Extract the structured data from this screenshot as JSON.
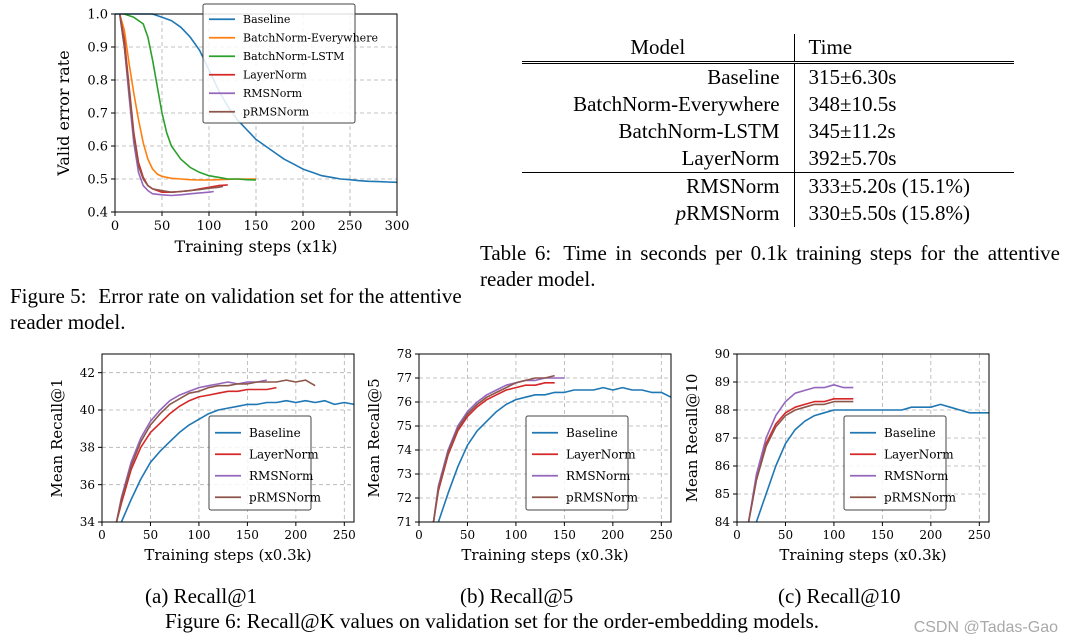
{
  "figure5": {
    "caption_label": "Figure 5:",
    "caption_text": "Error rate on validation set for the attentive reader model."
  },
  "table6": {
    "columns": [
      "Model",
      "Time"
    ],
    "rows": [
      {
        "model": "Baseline",
        "time": "315±6.30s"
      },
      {
        "model": "BatchNorm-Everywhere",
        "time": "348±10.5s"
      },
      {
        "model": "BatchNorm-LSTM",
        "time": "345±11.2s"
      },
      {
        "model": "LayerNorm",
        "time": "392±5.70s"
      },
      {
        "model": "RMSNorm",
        "time": "333±5.20s (15.1%)"
      },
      {
        "model": "pRMSNorm",
        "time": "330±5.50s (15.8%)"
      }
    ],
    "caption_label": "Table 6:",
    "caption_text": "Time in seconds per 0.1k training steps for the attentive reader model."
  },
  "figure6": {
    "subcaptions": [
      "(a) Recall@1",
      "(b) Recall@5",
      "(c) Recall@10"
    ],
    "caption": "Figure 6: Recall@K values on validation set for the order-embedding models."
  },
  "watermark": "CSDN @Tadas-Gao",
  "colors": {
    "Baseline": "#1f77b4",
    "BatchNorm-Everywhere": "#ff7f0e",
    "BatchNorm-LSTM": "#2ca02c",
    "LayerNorm": "#d62728",
    "RMSNorm": "#9467bd",
    "pRMSNorm": "#8c564b"
  },
  "chart_data": [
    {
      "id": "fig5",
      "type": "line",
      "xlabel": "Training steps (x1k)",
      "ylabel": "Valid error rate",
      "xlim": [
        0,
        300
      ],
      "ylim": [
        0.4,
        1.0
      ],
      "xticks": [
        0,
        50,
        100,
        150,
        200,
        250,
        300
      ],
      "yticks": [
        0.4,
        0.5,
        0.6,
        0.7,
        0.8,
        0.9,
        1.0
      ],
      "grid": true,
      "legend_position": "top-right",
      "series": [
        {
          "name": "Baseline",
          "x": [
            0,
            10,
            20,
            30,
            40,
            50,
            60,
            70,
            80,
            90,
            100,
            110,
            120,
            130,
            140,
            150,
            160,
            170,
            180,
            190,
            200,
            210,
            220,
            230,
            240,
            250,
            260,
            270,
            280,
            290,
            300
          ],
          "y": [
            1.0,
            1.0,
            1.0,
            1.0,
            1.0,
            0.99,
            0.98,
            0.96,
            0.93,
            0.89,
            0.83,
            0.77,
            0.72,
            0.68,
            0.65,
            0.62,
            0.6,
            0.58,
            0.56,
            0.545,
            0.53,
            0.52,
            0.51,
            0.505,
            0.5,
            0.498,
            0.495,
            0.493,
            0.492,
            0.491,
            0.49
          ]
        },
        {
          "name": "BatchNorm-Everywhere",
          "x": [
            5,
            10,
            15,
            20,
            25,
            30,
            35,
            40,
            45,
            50,
            60,
            70,
            80,
            90,
            100,
            110,
            120,
            130,
            140,
            150
          ],
          "y": [
            1.0,
            0.95,
            0.85,
            0.76,
            0.68,
            0.61,
            0.56,
            0.53,
            0.515,
            0.508,
            0.502,
            0.5,
            0.498,
            0.497,
            0.497,
            0.498,
            0.499,
            0.5,
            0.5,
            0.5
          ]
        },
        {
          "name": "BatchNorm-LSTM",
          "x": [
            10,
            20,
            30,
            35,
            40,
            45,
            50,
            55,
            60,
            70,
            80,
            90,
            100,
            110,
            120,
            130,
            140,
            150
          ],
          "y": [
            1.0,
            0.99,
            0.97,
            0.93,
            0.86,
            0.78,
            0.7,
            0.64,
            0.6,
            0.56,
            0.535,
            0.52,
            0.51,
            0.505,
            0.5,
            0.5,
            0.498,
            0.497
          ]
        },
        {
          "name": "LayerNorm",
          "x": [
            5,
            10,
            15,
            20,
            25,
            30,
            35,
            40,
            50,
            60,
            70,
            80,
            90,
            100,
            110,
            120
          ],
          "y": [
            1.0,
            0.92,
            0.78,
            0.64,
            0.55,
            0.505,
            0.48,
            0.47,
            0.46,
            0.46,
            0.462,
            0.465,
            0.47,
            0.475,
            0.48,
            0.482
          ]
        },
        {
          "name": "RMSNorm",
          "x": [
            5,
            10,
            15,
            20,
            25,
            30,
            35,
            40,
            50,
            60,
            70,
            80,
            90,
            100,
            105
          ],
          "y": [
            1.0,
            0.9,
            0.75,
            0.61,
            0.52,
            0.48,
            0.465,
            0.455,
            0.452,
            0.45,
            0.452,
            0.455,
            0.458,
            0.46,
            0.462
          ]
        },
        {
          "name": "pRMSNorm",
          "x": [
            5,
            10,
            15,
            20,
            25,
            30,
            35,
            40,
            50,
            60,
            70,
            80,
            90,
            100,
            110,
            115
          ],
          "y": [
            1.0,
            0.9,
            0.77,
            0.63,
            0.54,
            0.5,
            0.48,
            0.47,
            0.465,
            0.46,
            0.462,
            0.465,
            0.468,
            0.472,
            0.475,
            0.478
          ]
        }
      ]
    },
    {
      "id": "fig6a",
      "type": "line",
      "xlabel": "Training steps (x0.3k)",
      "ylabel": "Mean Recall@1",
      "xlim": [
        0,
        260
      ],
      "ylim": [
        34,
        43
      ],
      "xticks": [
        0,
        50,
        100,
        150,
        200,
        250
      ],
      "yticks": [
        34,
        36,
        38,
        40,
        42
      ],
      "grid": true,
      "legend_position": "bottom-right",
      "series": [
        {
          "name": "Baseline",
          "x": [
            20,
            30,
            40,
            50,
            60,
            70,
            80,
            90,
            100,
            110,
            120,
            130,
            140,
            150,
            160,
            170,
            180,
            190,
            200,
            210,
            220,
            230,
            240,
            250,
            260
          ],
          "y": [
            34.0,
            35.2,
            36.3,
            37.2,
            37.8,
            38.3,
            38.8,
            39.2,
            39.5,
            39.8,
            40.0,
            40.1,
            40.2,
            40.3,
            40.3,
            40.4,
            40.4,
            40.5,
            40.4,
            40.5,
            40.4,
            40.5,
            40.3,
            40.4,
            40.3
          ]
        },
        {
          "name": "LayerNorm",
          "x": [
            15,
            20,
            30,
            40,
            50,
            60,
            70,
            80,
            90,
            100,
            110,
            120,
            130,
            140,
            150,
            160,
            170,
            180
          ],
          "y": [
            34.0,
            35.0,
            36.8,
            38.0,
            38.8,
            39.3,
            39.8,
            40.2,
            40.5,
            40.7,
            40.8,
            40.9,
            41.0,
            41.0,
            41.1,
            41.1,
            41.1,
            41.2
          ]
        },
        {
          "name": "RMSNorm",
          "x": [
            15,
            20,
            30,
            40,
            50,
            60,
            70,
            80,
            90,
            100,
            110,
            120,
            130,
            140,
            150,
            160,
            170
          ],
          "y": [
            34.0,
            35.3,
            37.2,
            38.5,
            39.4,
            40.0,
            40.5,
            40.8,
            41.0,
            41.2,
            41.3,
            41.4,
            41.5,
            41.4,
            41.5,
            41.5,
            41.6
          ]
        },
        {
          "name": "pRMSNorm",
          "x": [
            15,
            20,
            30,
            40,
            50,
            60,
            70,
            80,
            90,
            100,
            110,
            120,
            130,
            140,
            150,
            160,
            170,
            180,
            190,
            200,
            210,
            220
          ],
          "y": [
            34.0,
            35.2,
            37.0,
            38.3,
            39.2,
            39.8,
            40.3,
            40.6,
            40.9,
            41.0,
            41.2,
            41.3,
            41.3,
            41.4,
            41.4,
            41.5,
            41.5,
            41.5,
            41.6,
            41.5,
            41.6,
            41.3
          ]
        }
      ]
    },
    {
      "id": "fig6b",
      "type": "line",
      "xlabel": "Training steps (x0.3k)",
      "ylabel": "Mean Recall@5",
      "xlim": [
        0,
        260
      ],
      "ylim": [
        71,
        78
      ],
      "xticks": [
        0,
        50,
        100,
        150,
        200,
        250
      ],
      "yticks": [
        71,
        72,
        73,
        74,
        75,
        76,
        77,
        78
      ],
      "grid": true,
      "legend_position": "bottom-right",
      "series": [
        {
          "name": "Baseline",
          "x": [
            20,
            30,
            40,
            50,
            60,
            70,
            80,
            90,
            100,
            110,
            120,
            130,
            140,
            150,
            160,
            170,
            180,
            190,
            200,
            210,
            220,
            230,
            240,
            250,
            260
          ],
          "y": [
            71.0,
            72.2,
            73.3,
            74.2,
            74.8,
            75.2,
            75.6,
            75.9,
            76.1,
            76.2,
            76.3,
            76.3,
            76.4,
            76.4,
            76.5,
            76.5,
            76.5,
            76.6,
            76.5,
            76.6,
            76.5,
            76.5,
            76.4,
            76.4,
            76.2
          ]
        },
        {
          "name": "LayerNorm",
          "x": [
            15,
            20,
            30,
            40,
            50,
            60,
            70,
            80,
            90,
            100,
            110,
            120,
            130,
            140
          ],
          "y": [
            71.0,
            72.3,
            73.8,
            74.8,
            75.4,
            75.8,
            76.1,
            76.3,
            76.5,
            76.6,
            76.7,
            76.7,
            76.8,
            76.8
          ]
        },
        {
          "name": "RMSNorm",
          "x": [
            15,
            20,
            30,
            40,
            50,
            60,
            70,
            80,
            90,
            100,
            110,
            120,
            130,
            140,
            150
          ],
          "y": [
            71.0,
            72.5,
            74.0,
            75.0,
            75.6,
            76.0,
            76.3,
            76.5,
            76.7,
            76.8,
            76.9,
            76.9,
            77.0,
            77.0,
            77.0
          ]
        },
        {
          "name": "pRMSNorm",
          "x": [
            15,
            20,
            30,
            40,
            50,
            60,
            70,
            80,
            90,
            100,
            110,
            120,
            130,
            140
          ],
          "y": [
            71.0,
            72.4,
            73.9,
            74.9,
            75.5,
            75.9,
            76.2,
            76.4,
            76.6,
            76.8,
            76.9,
            77.0,
            77.0,
            77.1
          ]
        }
      ]
    },
    {
      "id": "fig6c",
      "type": "line",
      "xlabel": "Training steps (x0.3k)",
      "ylabel": "Mean Recall@10",
      "xlim": [
        0,
        260
      ],
      "ylim": [
        84,
        90
      ],
      "xticks": [
        0,
        50,
        100,
        150,
        200,
        250
      ],
      "yticks": [
        84,
        85,
        86,
        87,
        88,
        89,
        90
      ],
      "grid": true,
      "legend_position": "bottom-right",
      "series": [
        {
          "name": "Baseline",
          "x": [
            20,
            30,
            40,
            50,
            60,
            70,
            80,
            90,
            100,
            110,
            120,
            130,
            140,
            150,
            160,
            170,
            180,
            190,
            200,
            210,
            220,
            230,
            240,
            250,
            260
          ],
          "y": [
            84.0,
            85.0,
            86.0,
            86.8,
            87.3,
            87.6,
            87.8,
            87.9,
            88.0,
            88.0,
            88.0,
            88.0,
            88.0,
            88.0,
            88.0,
            88.0,
            88.1,
            88.1,
            88.1,
            88.2,
            88.1,
            88.0,
            87.9,
            87.9,
            87.9
          ]
        },
        {
          "name": "LayerNorm",
          "x": [
            12,
            20,
            30,
            40,
            50,
            60,
            70,
            80,
            90,
            100,
            110,
            120
          ],
          "y": [
            84.0,
            85.5,
            86.8,
            87.5,
            87.9,
            88.1,
            88.2,
            88.3,
            88.3,
            88.4,
            88.4,
            88.4
          ]
        },
        {
          "name": "RMSNorm",
          "x": [
            12,
            20,
            30,
            40,
            50,
            60,
            70,
            80,
            90,
            100,
            110,
            120
          ],
          "y": [
            84.0,
            85.7,
            87.0,
            87.8,
            88.3,
            88.6,
            88.7,
            88.8,
            88.8,
            88.9,
            88.8,
            88.8
          ]
        },
        {
          "name": "pRMSNorm",
          "x": [
            12,
            20,
            30,
            40,
            50,
            60,
            70,
            80,
            90,
            100,
            110,
            120
          ],
          "y": [
            84.0,
            85.5,
            86.7,
            87.4,
            87.8,
            88.0,
            88.1,
            88.2,
            88.2,
            88.3,
            88.3,
            88.3
          ]
        }
      ]
    }
  ]
}
